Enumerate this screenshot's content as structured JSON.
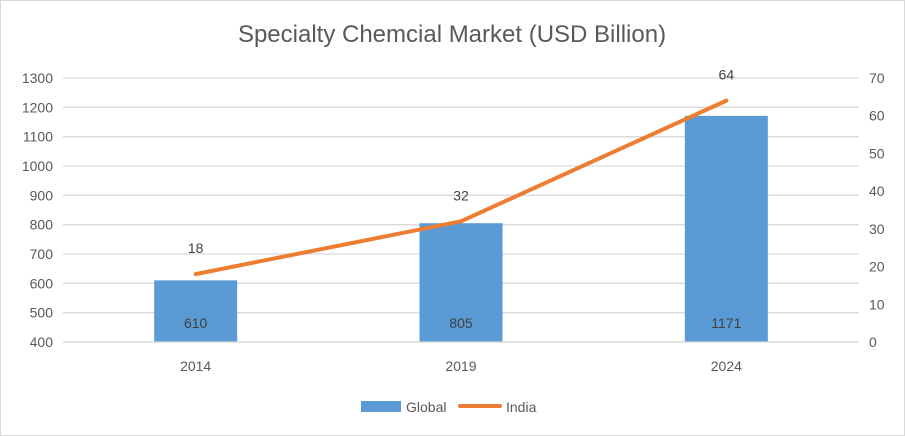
{
  "chart_data": {
    "type": "bar+line",
    "title": "Specialty Chemcial Market (USD Billion)",
    "categories": [
      "2014",
      "2019",
      "2024"
    ],
    "series": [
      {
        "name": "Global",
        "type": "bar",
        "axis": "left",
        "values": [
          610,
          805,
          1171
        ],
        "color": "#5b9bd5",
        "labels": [
          "610",
          "805",
          "1171"
        ]
      },
      {
        "name": "India",
        "type": "line",
        "axis": "right",
        "values": [
          18,
          32,
          64
        ],
        "color": "#ed7d31",
        "labels": [
          "18",
          "32",
          "64"
        ]
      }
    ],
    "y_left": {
      "min": 400,
      "max": 1300,
      "step": 100,
      "ticks": [
        "400",
        "500",
        "600",
        "700",
        "800",
        "900",
        "1000",
        "1100",
        "1200",
        "1300"
      ]
    },
    "y_right": {
      "min": 0,
      "max": 70,
      "step": 10,
      "ticks": [
        "0",
        "10",
        "20",
        "30",
        "40",
        "50",
        "60",
        "70"
      ]
    },
    "grid": true,
    "legend": {
      "position": "bottom",
      "items": [
        "Global",
        "India"
      ]
    }
  }
}
